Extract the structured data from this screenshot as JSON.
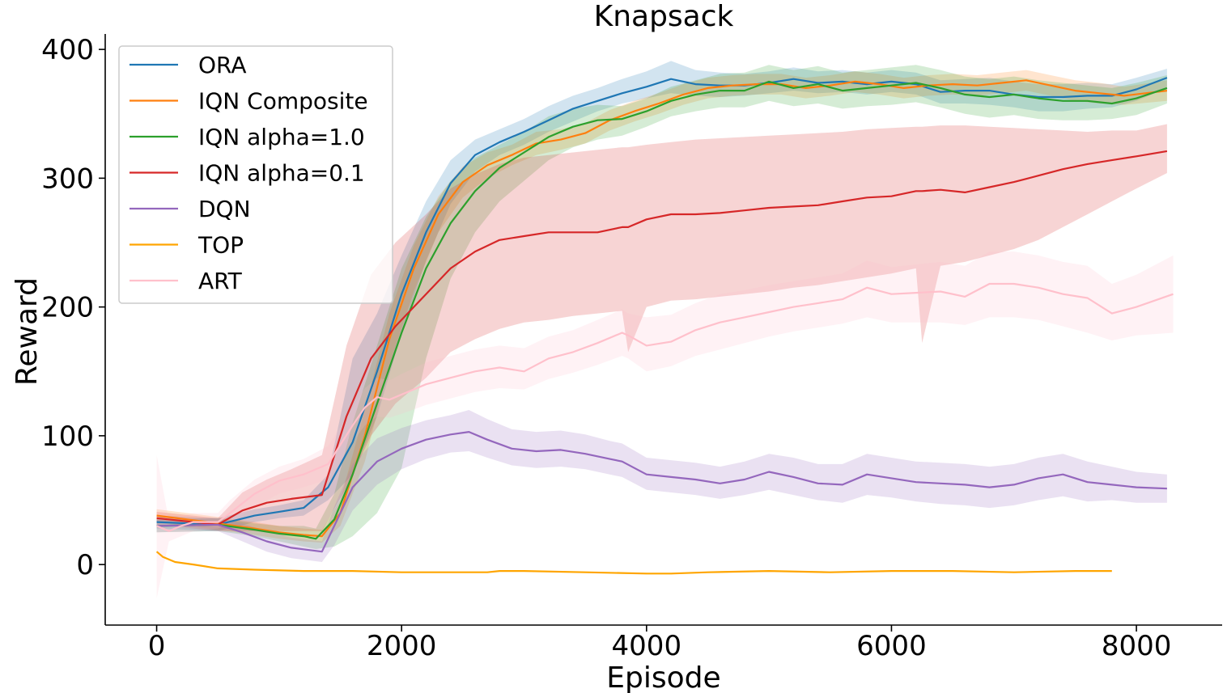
{
  "chart_data": {
    "type": "line",
    "title": "Knapsack",
    "xlabel": "Episode",
    "ylabel": "Reward",
    "xlim": [
      -420,
      8700
    ],
    "ylim": [
      -47,
      412
    ],
    "xticks": [
      0,
      2000,
      4000,
      6000,
      8000
    ],
    "yticks": [
      0,
      100,
      200,
      300,
      400
    ],
    "legend_position": "upper-left",
    "series": [
      {
        "name": "ORA",
        "color": "#1f77b4",
        "x": [
          0,
          500,
          800,
          1000,
          1200,
          1400,
          1600,
          1800,
          2000,
          2200,
          2400,
          2600,
          2800,
          3000,
          3200,
          3400,
          3600,
          3800,
          4000,
          4200,
          4400,
          4600,
          4800,
          5000,
          5200,
          5400,
          5600,
          5800,
          6000,
          6200,
          6400,
          6600,
          6800,
          7000,
          7200,
          7400,
          7600,
          7800,
          8000,
          8250
        ],
        "y": [
          33,
          31,
          38,
          41,
          44,
          60,
          95,
          150,
          210,
          258,
          296,
          318,
          328,
          336,
          345,
          354,
          360,
          366,
          371,
          377,
          373,
          372,
          372,
          374,
          377,
          374,
          375,
          373,
          375,
          373,
          367,
          368,
          368,
          365,
          363,
          363,
          364,
          364,
          369,
          378
        ],
        "lower": [
          28,
          26,
          33,
          36,
          38,
          50,
          70,
          115,
          180,
          236,
          280,
          305,
          318,
          326,
          336,
          344,
          352,
          358,
          362,
          366,
          364,
          363,
          364,
          366,
          368,
          366,
          367,
          365,
          367,
          365,
          358,
          358,
          357,
          355,
          352,
          352,
          354,
          355,
          360,
          370
        ],
        "upper": [
          38,
          36,
          43,
          46,
          50,
          70,
          160,
          195,
          240,
          282,
          314,
          330,
          338,
          346,
          356,
          364,
          370,
          377,
          383,
          391,
          384,
          382,
          381,
          383,
          386,
          383,
          384,
          382,
          384,
          382,
          376,
          377,
          378,
          375,
          373,
          373,
          374,
          373,
          378,
          385
        ]
      },
      {
        "name": "IQN Composite",
        "color": "#ff7f0e",
        "x": [
          0,
          500,
          800,
          1000,
          1200,
          1350,
          1500,
          1700,
          1900,
          2100,
          2300,
          2500,
          2700,
          2900,
          3100,
          3300,
          3500,
          3700,
          3900,
          4100,
          4300,
          4500,
          4700,
          4900,
          5100,
          5300,
          5500,
          5700,
          5900,
          6100,
          6300,
          6500,
          6700,
          6900,
          7100,
          7300,
          7500,
          7700,
          7900,
          8250
        ],
        "y": [
          38,
          32,
          28,
          25,
          23,
          22,
          40,
          100,
          175,
          230,
          272,
          297,
          310,
          318,
          327,
          330,
          335,
          345,
          352,
          358,
          365,
          370,
          372,
          373,
          373,
          370,
          372,
          375,
          373,
          370,
          372,
          373,
          372,
          374,
          376,
          372,
          368,
          366,
          364,
          368
        ],
        "lower": [
          33,
          27,
          23,
          20,
          18,
          17,
          30,
          80,
          155,
          212,
          258,
          285,
          300,
          310,
          318,
          322,
          327,
          337,
          344,
          350,
          357,
          362,
          364,
          365,
          365,
          362,
          364,
          367,
          365,
          362,
          364,
          365,
          364,
          366,
          368,
          364,
          360,
          358,
          357,
          360
        ],
        "upper": [
          43,
          37,
          33,
          30,
          28,
          27,
          50,
          120,
          195,
          248,
          286,
          309,
          320,
          326,
          336,
          338,
          343,
          353,
          360,
          366,
          373,
          378,
          380,
          381,
          381,
          378,
          380,
          383,
          381,
          378,
          380,
          381,
          380,
          382,
          384,
          380,
          376,
          374,
          371,
          376
        ]
      },
      {
        "name": "IQN alpha=1.0",
        "color": "#2ca02c",
        "x": [
          0,
          500,
          800,
          1000,
          1200,
          1300,
          1450,
          1600,
          1800,
          2000,
          2200,
          2400,
          2600,
          2800,
          3000,
          3200,
          3400,
          3600,
          3800,
          4000,
          4200,
          4400,
          4600,
          4800,
          5000,
          5200,
          5400,
          5600,
          5800,
          6000,
          6200,
          6400,
          6600,
          6800,
          7000,
          7200,
          7400,
          7600,
          7800,
          8000,
          8250
        ],
        "y": [
          30,
          31,
          27,
          24,
          22,
          20,
          35,
          70,
          125,
          180,
          230,
          265,
          290,
          308,
          320,
          332,
          340,
          345,
          346,
          352,
          360,
          365,
          368,
          368,
          375,
          370,
          373,
          368,
          370,
          372,
          374,
          370,
          365,
          363,
          365,
          362,
          360,
          360,
          358,
          362,
          370
        ],
        "lower": [
          25,
          26,
          22,
          18,
          14,
          12,
          14,
          22,
          40,
          75,
          160,
          222,
          258,
          282,
          298,
          314,
          324,
          330,
          333,
          340,
          348,
          352,
          355,
          355,
          360,
          356,
          358,
          354,
          356,
          357,
          359,
          355,
          350,
          347,
          349,
          346,
          345,
          345,
          346,
          349,
          358
        ],
        "upper": [
          35,
          36,
          32,
          30,
          30,
          28,
          55,
          110,
          170,
          230,
          270,
          298,
          316,
          326,
          336,
          348,
          354,
          357,
          356,
          362,
          371,
          376,
          381,
          382,
          388,
          384,
          387,
          382,
          384,
          386,
          388,
          384,
          379,
          377,
          379,
          376,
          374,
          372,
          370,
          374,
          380
        ]
      },
      {
        "name": "IQN alpha=0.1",
        "color": "#d62728",
        "x": [
          0,
          500,
          700,
          900,
          1100,
          1350,
          1550,
          1750,
          1950,
          2200,
          2400,
          2600,
          2800,
          3000,
          3200,
          3400,
          3600,
          3800,
          3850,
          4000,
          4200,
          4400,
          4600,
          4800,
          5000,
          5200,
          5400,
          5600,
          5800,
          6000,
          6200,
          6250,
          6400,
          6600,
          6800,
          7000,
          7200,
          7400,
          7600,
          7800,
          8000,
          8250
        ],
        "y": [
          36,
          31,
          42,
          48,
          51,
          54,
          115,
          160,
          185,
          210,
          230,
          243,
          252,
          255,
          258,
          258,
          258,
          262,
          262,
          268,
          272,
          272,
          273,
          275,
          277,
          278,
          279,
          282,
          285,
          286,
          290,
          290,
          291,
          289,
          293,
          297,
          302,
          307,
          311,
          314,
          317,
          321
        ],
        "lower": [
          31,
          26,
          26,
          26,
          26,
          26,
          60,
          100,
          125,
          145,
          165,
          175,
          183,
          188,
          190,
          193,
          195,
          197,
          165,
          200,
          205,
          206,
          208,
          210,
          212,
          215,
          217,
          220,
          223,
          226,
          230,
          172,
          232,
          235,
          240,
          245,
          252,
          262,
          272,
          282,
          292,
          304
        ],
        "upper": [
          41,
          36,
          56,
          66,
          74,
          85,
          170,
          225,
          250,
          272,
          292,
          303,
          311,
          316,
          318,
          320,
          322,
          324,
          324,
          326,
          328,
          330,
          331,
          332,
          333,
          334,
          335,
          336,
          338,
          339,
          340,
          340,
          341,
          341,
          340,
          339,
          338,
          337,
          336,
          337,
          337,
          342
        ]
      },
      {
        "name": "DQN",
        "color": "#9467bd",
        "x": [
          0,
          500,
          700,
          900,
          1100,
          1350,
          1450,
          1600,
          1800,
          2000,
          2200,
          2400,
          2550,
          2700,
          2900,
          3100,
          3300,
          3500,
          3700,
          3800,
          4000,
          4200,
          4400,
          4600,
          4800,
          5000,
          5200,
          5400,
          5600,
          5800,
          6000,
          6200,
          6400,
          6600,
          6800,
          7000,
          7200,
          7400,
          7600,
          7800,
          8000,
          8250
        ],
        "y": [
          30,
          31,
          25,
          18,
          13,
          10,
          30,
          60,
          80,
          90,
          97,
          101,
          103,
          97,
          90,
          88,
          89,
          86,
          82,
          80,
          70,
          68,
          66,
          63,
          66,
          72,
          68,
          63,
          62,
          70,
          67,
          64,
          63,
          62,
          60,
          62,
          67,
          70,
          64,
          62,
          60,
          59
        ],
        "lower": [
          25,
          26,
          18,
          10,
          5,
          2,
          15,
          42,
          62,
          74,
          82,
          87,
          88,
          83,
          77,
          75,
          76,
          74,
          70,
          68,
          58,
          56,
          54,
          51,
          54,
          58,
          54,
          50,
          48,
          54,
          52,
          49,
          47,
          46,
          44,
          46,
          50,
          53,
          49,
          50,
          48,
          48
        ],
        "upper": [
          35,
          36,
          32,
          26,
          21,
          18,
          45,
          78,
          98,
          106,
          112,
          116,
          120,
          113,
          105,
          103,
          104,
          101,
          96,
          94,
          83,
          81,
          79,
          76,
          80,
          86,
          83,
          78,
          78,
          86,
          83,
          80,
          79,
          78,
          76,
          78,
          83,
          86,
          80,
          76,
          72,
          70
        ]
      },
      {
        "name": "TOP",
        "color": "#ffa500",
        "x": [
          0,
          50,
          150,
          300,
          500,
          800,
          1200,
          1600,
          2000,
          2500,
          2700,
          2800,
          3000,
          3500,
          4000,
          4200,
          4500,
          5000,
          5500,
          6000,
          6500,
          7000,
          7500,
          7700,
          7800
        ],
        "y": [
          10,
          6,
          2,
          0,
          -3,
          -4,
          -5,
          -5,
          -6,
          -6,
          -6,
          -5,
          -5,
          -6,
          -7,
          -7,
          -6,
          -5,
          -6,
          -5,
          -5,
          -6,
          -5,
          -5,
          -5
        ]
      },
      {
        "name": "ART",
        "color": "#ffc0cb",
        "x": [
          0,
          100,
          200,
          300,
          400,
          500,
          600,
          800,
          1000,
          1200,
          1400,
          1600,
          1700,
          1800,
          1900,
          2000,
          2200,
          2400,
          2600,
          2800,
          3000,
          3200,
          3400,
          3600,
          3800,
          3850,
          4000,
          4200,
          4400,
          4600,
          4800,
          5000,
          5200,
          5400,
          5600,
          5800,
          6000,
          6200,
          6400,
          6600,
          6800,
          7000,
          7200,
          7400,
          7600,
          7800,
          8000,
          8300
        ],
        "y": [
          30,
          26,
          30,
          33,
          33,
          33,
          40,
          55,
          65,
          70,
          78,
          108,
          122,
          130,
          128,
          132,
          140,
          145,
          150,
          153,
          150,
          160,
          165,
          172,
          180,
          178,
          170,
          173,
          182,
          188,
          192,
          196,
          200,
          203,
          206,
          215,
          210,
          211,
          212,
          208,
          218,
          218,
          215,
          210,
          207,
          195,
          200,
          210
        ],
        "lower": [
          -26,
          18,
          22,
          26,
          27,
          28,
          32,
          45,
          55,
          60,
          66,
          95,
          108,
          115,
          114,
          117,
          124,
          129,
          134,
          137,
          136,
          144,
          149,
          155,
          162,
          160,
          150,
          154,
          162,
          167,
          172,
          177,
          181,
          184,
          187,
          192,
          188,
          188,
          188,
          186,
          192,
          192,
          190,
          185,
          180,
          174,
          178,
          180
        ],
        "upper": [
          85,
          34,
          38,
          40,
          40,
          40,
          50,
          66,
          76,
          82,
          92,
          122,
          137,
          145,
          143,
          148,
          157,
          162,
          167,
          170,
          168,
          177,
          182,
          190,
          198,
          195,
          192,
          194,
          203,
          210,
          213,
          217,
          220,
          223,
          226,
          236,
          231,
          233,
          235,
          232,
          243,
          243,
          240,
          235,
          232,
          218,
          225,
          240
        ]
      }
    ]
  }
}
